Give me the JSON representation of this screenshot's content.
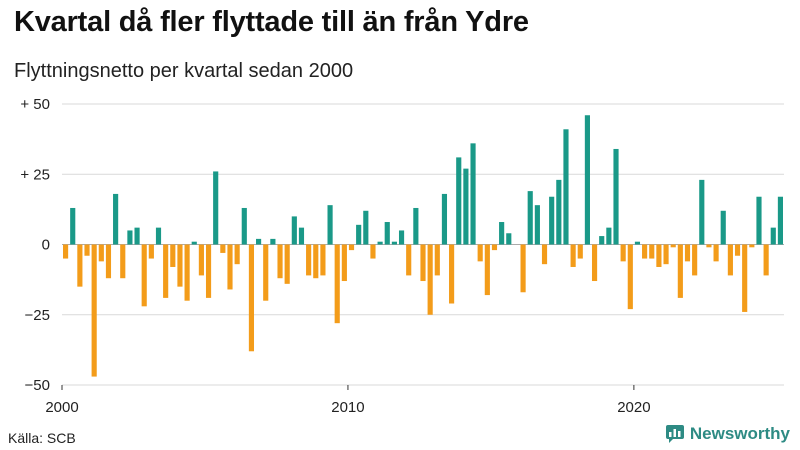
{
  "title": "Kvartal då fler flyttade till än från Ydre",
  "subtitle": "Flyttningsnetto per kvartal sedan 2000",
  "source": "Källa: SCB",
  "brand": "Newsworthy",
  "colors": {
    "positive": "#1a9988",
    "negative": "#f39c1a",
    "grid": "#d9d9d9",
    "zero": "#aaaaaa"
  },
  "chart_data": {
    "type": "bar",
    "title": "Kvartal då fler flyttade till än från Ydre",
    "subtitle": "Flyttningsnetto per kvartal sedan 2000",
    "xlabel": "",
    "ylabel": "",
    "ylim": [
      -50,
      50
    ],
    "grid": true,
    "x_start_year": 2000,
    "x_end": 2025.25,
    "y_ticks": [
      {
        "value": 50,
        "label": "+ 50"
      },
      {
        "value": 25,
        "label": "+ 25"
      },
      {
        "value": 0,
        "label": "0"
      },
      {
        "value": -25,
        "label": "−25"
      },
      {
        "value": -50,
        "label": "−50"
      }
    ],
    "x_ticks": [
      {
        "value": 2000,
        "label": "2000"
      },
      {
        "value": 2010,
        "label": "2010"
      },
      {
        "value": 2020,
        "label": "2020"
      }
    ],
    "values": [
      -5,
      13,
      -15,
      -4,
      -47,
      -6,
      -12,
      18,
      -12,
      5,
      6,
      -22,
      -5,
      6,
      -19,
      -8,
      -15,
      -20,
      1,
      -11,
      -19,
      26,
      -3,
      -16,
      -7,
      13,
      -38,
      2,
      -20,
      2,
      -12,
      -14,
      10,
      6,
      -11,
      -12,
      -11,
      14,
      -28,
      -13,
      -2,
      7,
      12,
      -5,
      1,
      8,
      1,
      5,
      -11,
      13,
      -13,
      -25,
      -11,
      18,
      -21,
      31,
      27,
      36,
      -6,
      -18,
      -2,
      8,
      4,
      0,
      -17,
      19,
      14,
      -7,
      17,
      23,
      41,
      -8,
      -5,
      46,
      -13,
      3,
      6,
      34,
      -6,
      -23,
      1,
      -5,
      -5,
      -8,
      -7,
      -1,
      -19,
      -6,
      -11,
      23,
      -1,
      -6,
      12,
      -11,
      -4,
      -24,
      -1,
      17,
      -11,
      6,
      17
    ]
  }
}
